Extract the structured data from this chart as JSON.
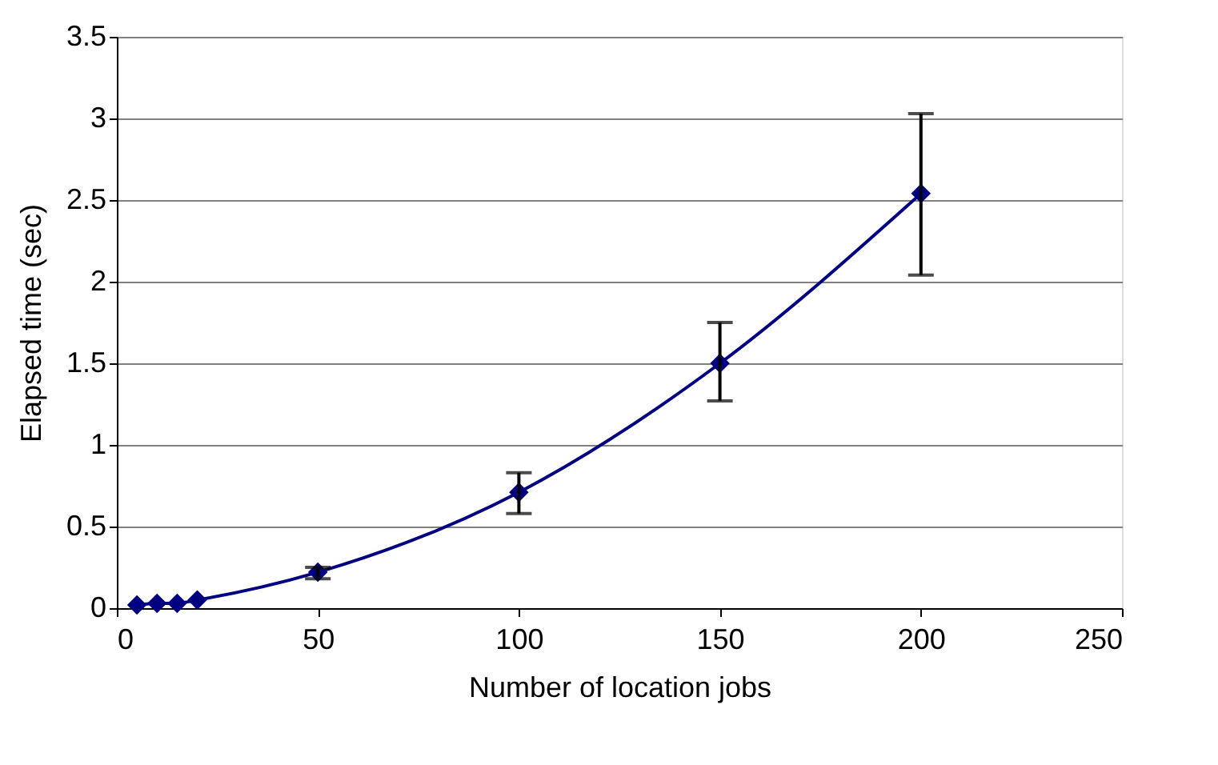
{
  "chart_data": {
    "type": "line",
    "xlabel": "Number of location jobs",
    "ylabel": "Elapsed time (sec)",
    "x": [
      5,
      10,
      15,
      20,
      50,
      100,
      150,
      200
    ],
    "series": [
      {
        "color": "#000080",
        "values": [
          0.02,
          0.03,
          0.03,
          0.05,
          0.22,
          0.71,
          1.5,
          2.54
        ],
        "errors": [
          null,
          null,
          null,
          null,
          [
            0.18,
            0.25
          ],
          [
            0.58,
            0.83
          ],
          [
            1.27,
            1.75
          ],
          [
            2.04,
            3.03
          ]
        ]
      }
    ],
    "xlim": [
      0,
      250
    ],
    "xticks": [
      0,
      50,
      100,
      150,
      200,
      250
    ],
    "ylim": [
      0,
      3.5
    ],
    "yticks": [
      0,
      0.5,
      1,
      1.5,
      2,
      2.5,
      3,
      3.5
    ],
    "grid": "y",
    "marker": "diamond",
    "line_style": "solid"
  }
}
